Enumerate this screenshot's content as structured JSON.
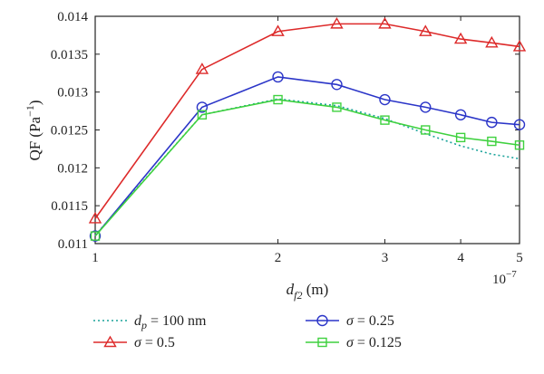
{
  "chart_data": {
    "type": "line",
    "xlabel": {
      "var": "d",
      "sub": "f2",
      "unit": " (m)"
    },
    "ylabel": {
      "base": "QF (Pa",
      "exp": "−1",
      "close": ")"
    },
    "x_scale": "log",
    "x_multiplier": "10",
    "x_multiplier_exp": "−7",
    "xlim": [
      1,
      5
    ],
    "ylim": [
      0.011,
      0.014
    ],
    "x_ticks": [
      1,
      2,
      3,
      4,
      5
    ],
    "x_tick_labels": [
      "1",
      "2",
      "3",
      "4",
      "5"
    ],
    "y_ticks": [
      0.011,
      0.0115,
      0.012,
      0.0125,
      0.013,
      0.0135,
      0.014
    ],
    "y_tick_labels": [
      "0.011",
      "0.0115",
      "0.012",
      "0.0125",
      "0.013",
      "0.0135",
      "0.014"
    ],
    "grid": false,
    "legend_placement": "bottom",
    "series": [
      {
        "legend_prefix": "d",
        "legend_sub": "p",
        "legend_rest": " = 100 nm",
        "color": "#1aa39a",
        "dash": "2,3",
        "marker": "none",
        "x": [
          1,
          1.5,
          2,
          2.5,
          3,
          3.5,
          4,
          4.5,
          5
        ],
        "y": [
          0.01111,
          0.0127,
          0.01291,
          0.01282,
          0.01265,
          0.01245,
          0.01229,
          0.01218,
          0.01212
        ]
      },
      {
        "legend_prefix": "σ",
        "legend_sub": "",
        "legend_rest": " = 0.5",
        "color": "#dd2a2a",
        "dash": "",
        "marker": "triangle",
        "x": [
          1,
          1.5,
          2,
          2.5,
          3,
          3.5,
          4,
          4.5,
          5
        ],
        "y": [
          0.01133,
          0.0133,
          0.0138,
          0.0139,
          0.0139,
          0.0138,
          0.0137,
          0.01365,
          0.0136
        ]
      },
      {
        "legend_prefix": "σ",
        "legend_sub": "",
        "legend_rest": " = 0.25",
        "color": "#2b35c8",
        "dash": "",
        "marker": "circle",
        "x": [
          1,
          1.5,
          2,
          2.5,
          3,
          3.5,
          4,
          4.5,
          5
        ],
        "y": [
          0.0111,
          0.0128,
          0.0132,
          0.0131,
          0.0129,
          0.0128,
          0.0127,
          0.0126,
          0.01257
        ]
      },
      {
        "legend_prefix": "σ",
        "legend_sub": "",
        "legend_rest": " = 0.125",
        "color": "#3fd13f",
        "dash": "",
        "marker": "square",
        "x": [
          1,
          1.5,
          2,
          2.5,
          3,
          3.5,
          4,
          4.5,
          5
        ],
        "y": [
          0.0111,
          0.0127,
          0.0129,
          0.0128,
          0.01263,
          0.0125,
          0.0124,
          0.01235,
          0.0123
        ]
      }
    ]
  }
}
